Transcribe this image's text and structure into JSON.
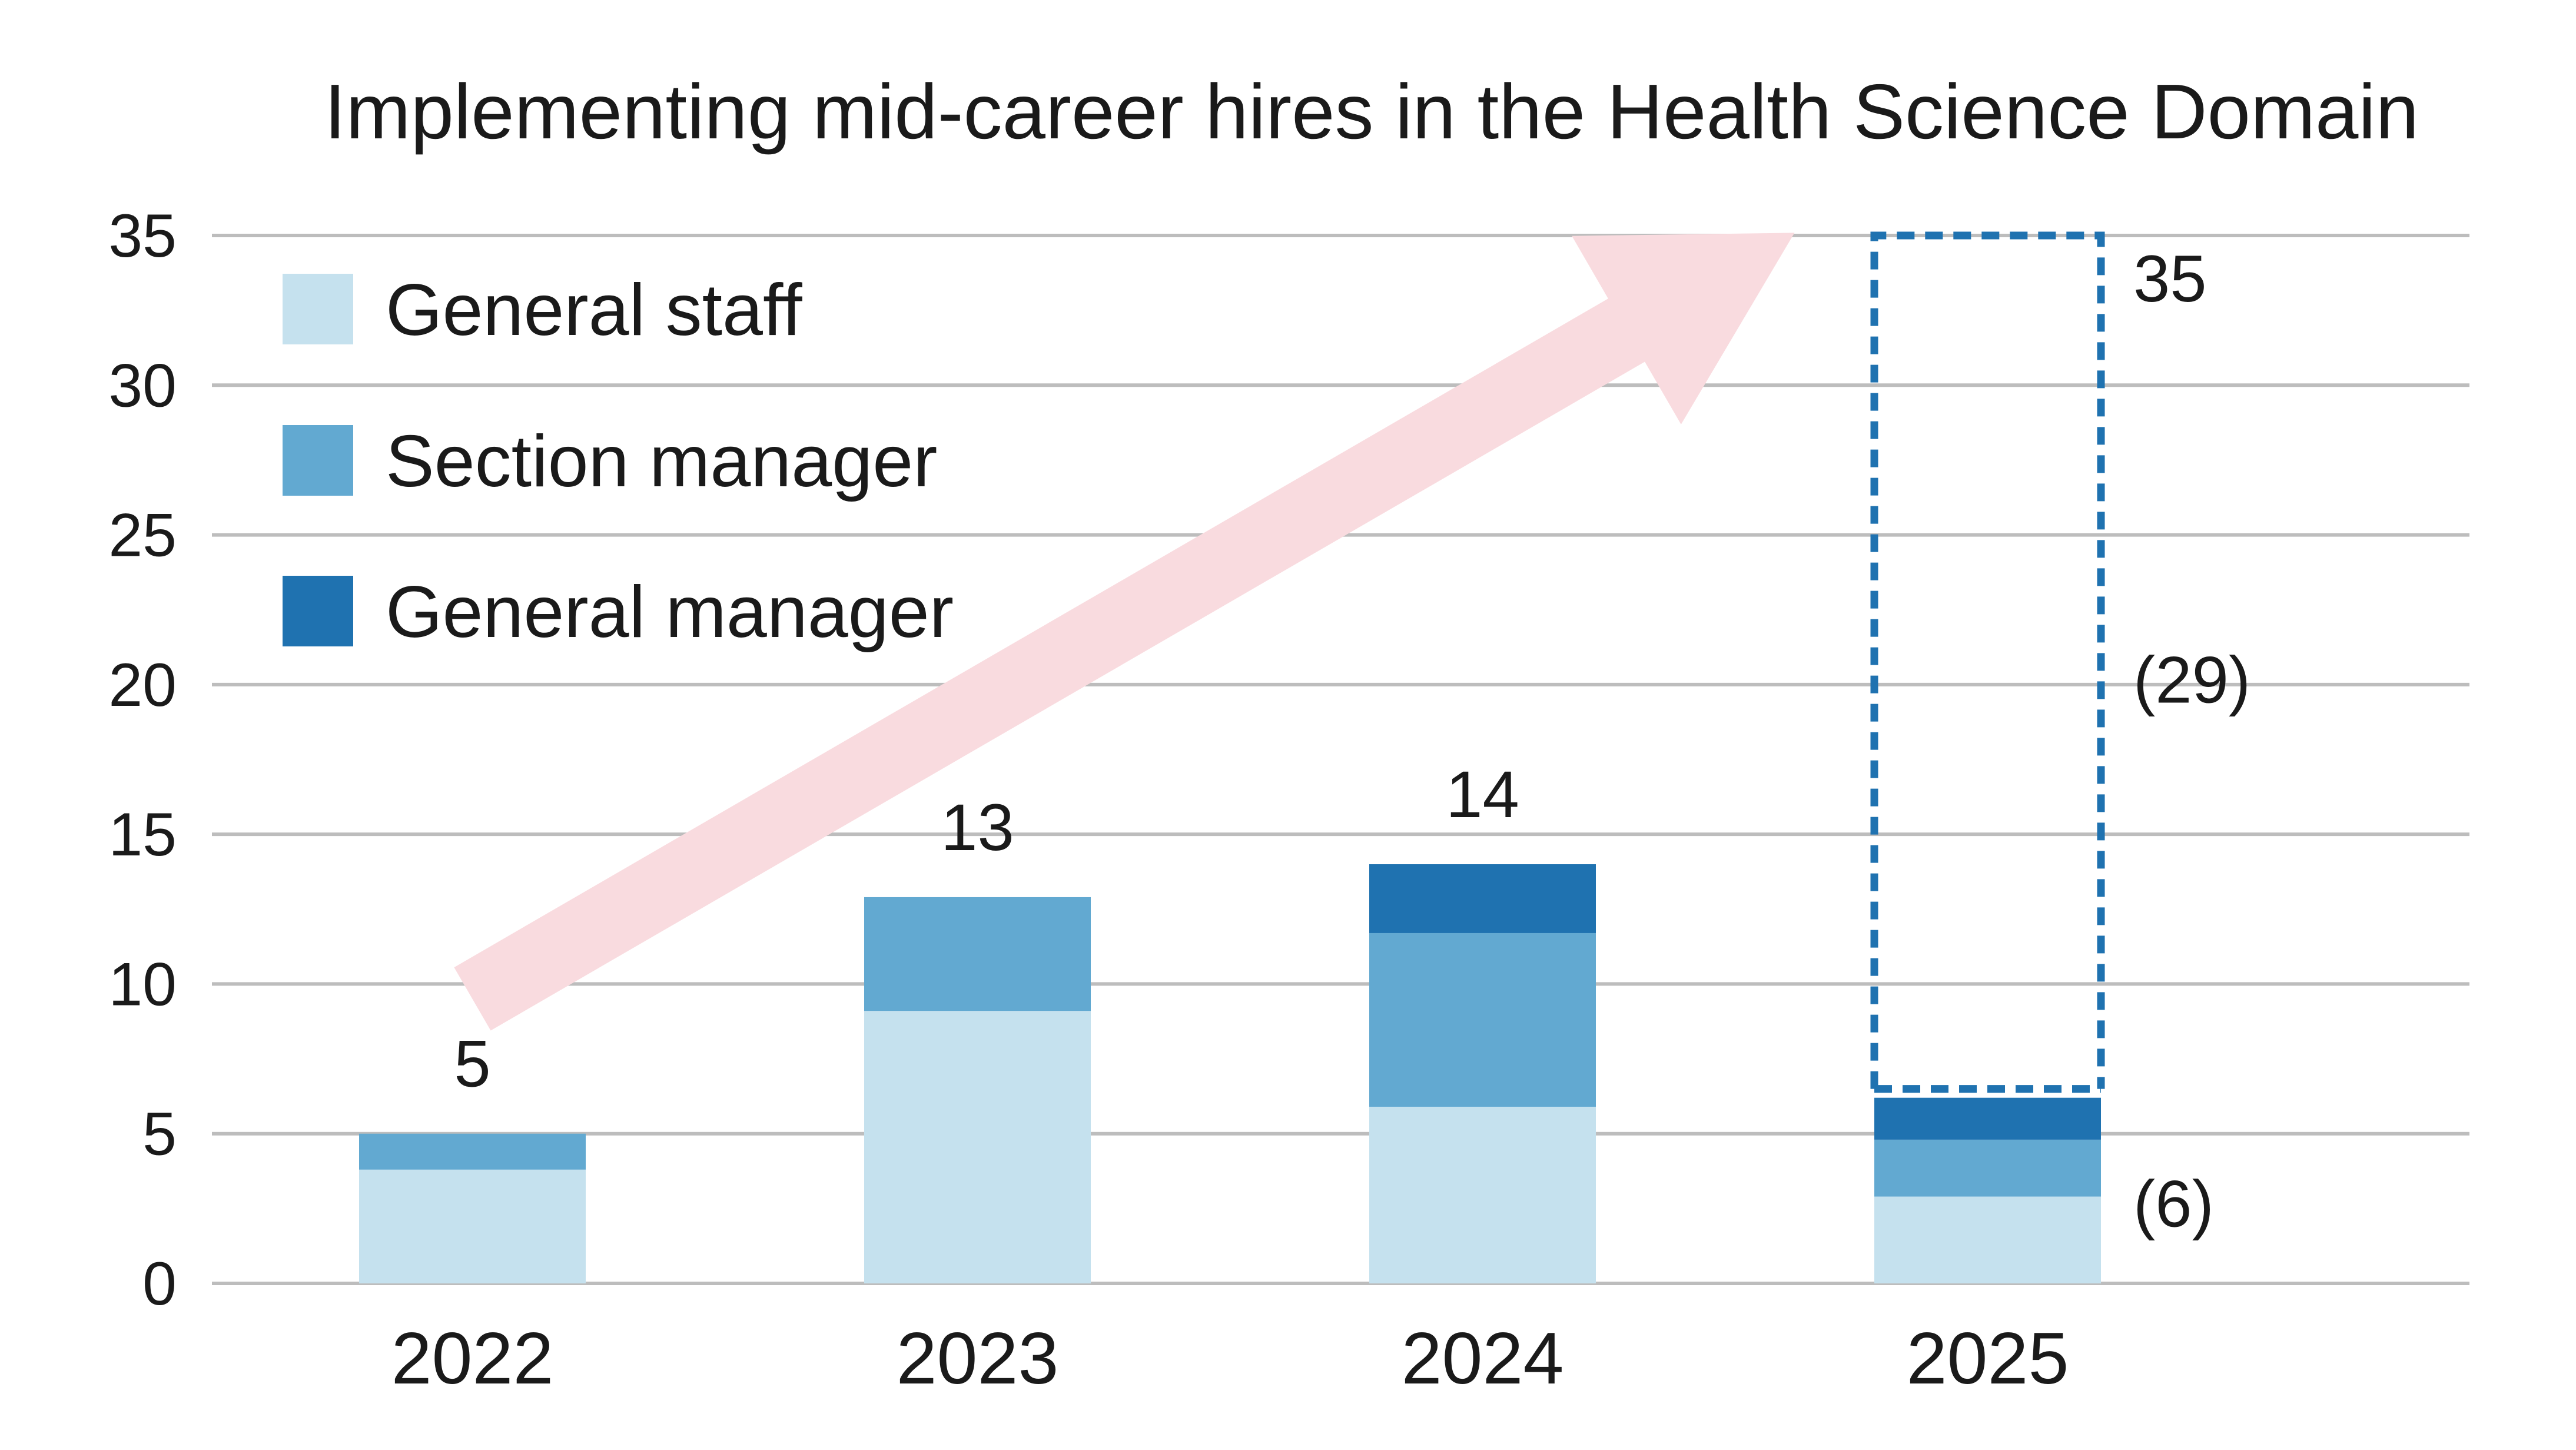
{
  "chart_data": {
    "type": "bar",
    "stacked": true,
    "title": "Implementing mid-career hires in the Health Science Domain",
    "xlabel": "",
    "ylabel": "",
    "categories": [
      "2022",
      "2023",
      "2024",
      "2025"
    ],
    "ylim": [
      0,
      35
    ],
    "yticks": [
      "0",
      "5",
      "10",
      "15",
      "20",
      "25",
      "30",
      "35"
    ],
    "grid": true,
    "legend_position": "top-left",
    "series": [
      {
        "name": "General staff",
        "color": "#c5e1ee",
        "values": [
          3.8,
          9.1,
          5.9,
          2.9
        ]
      },
      {
        "name": "Section manager",
        "color": "#62a9d1",
        "values": [
          1.2,
          3.8,
          5.8,
          1.9
        ]
      },
      {
        "name": "General manager",
        "color": "#1f72b0",
        "values": [
          0,
          0,
          2.3,
          1.4
        ]
      }
    ],
    "total_labels": [
      "5",
      "13",
      "14",
      ""
    ],
    "planned": {
      "category": "2025",
      "target_total": 35,
      "target_label": "35",
      "remaining_label": "(29)",
      "current_total": 6.2,
      "current_label": "(6)",
      "outline_color": "#1f72b0"
    },
    "trend_arrow": {
      "from": {
        "category": "2022",
        "value": 9.5
      },
      "to": {
        "category": "2024",
        "value": 34.5
      },
      "color": "#f9dbdf"
    }
  }
}
